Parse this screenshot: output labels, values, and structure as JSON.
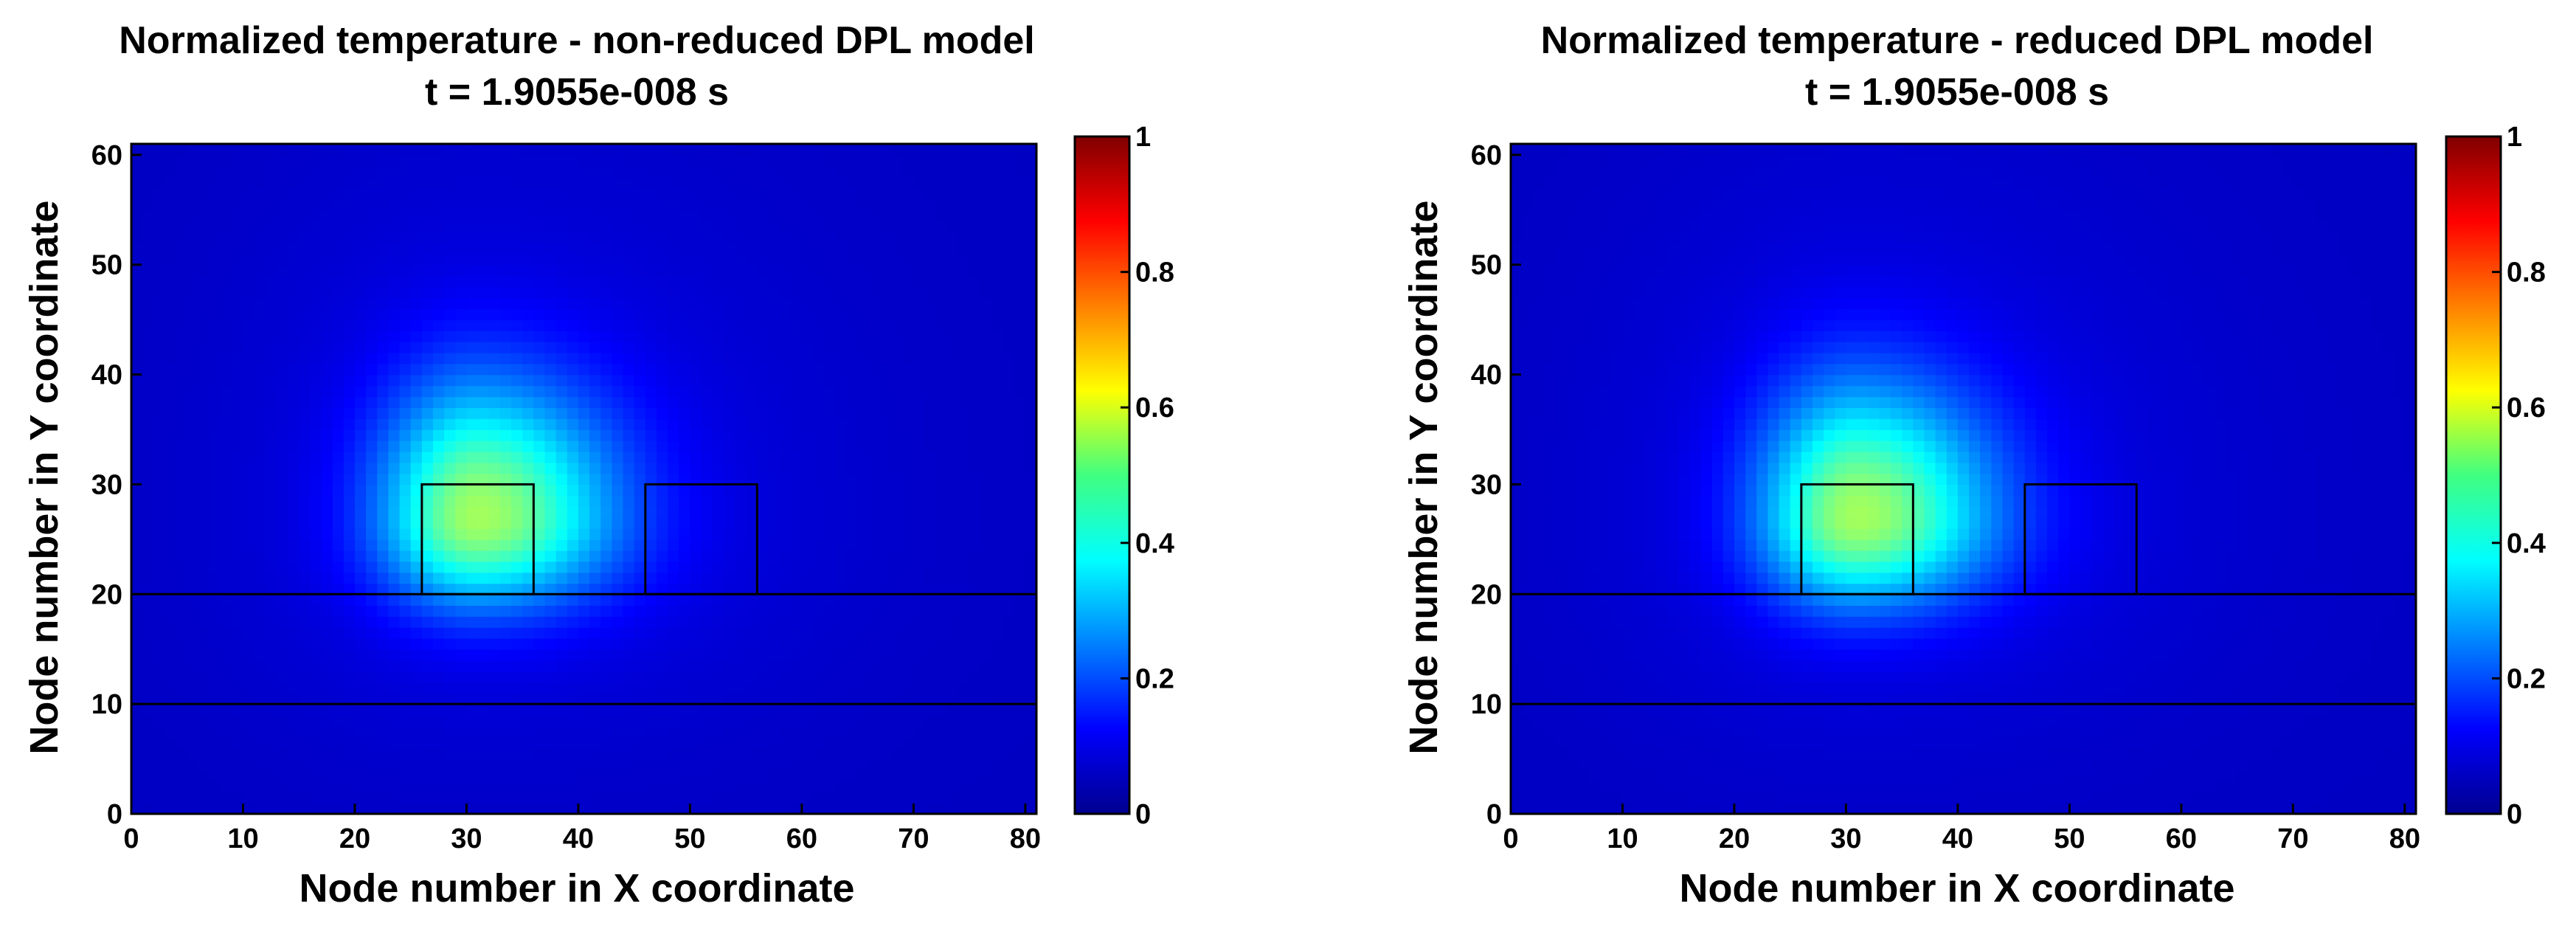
{
  "chart_data": [
    {
      "type": "heatmap",
      "title": "Normalized temperature - non-reduced DPL model",
      "subtitle": "t = 1.9055e-008 s",
      "xlabel": "Node number in X coordinate",
      "ylabel": "Node number in Y coordinate",
      "xlim": [
        0,
        81
      ],
      "ylim": [
        0,
        61
      ],
      "xticks": [
        0,
        10,
        20,
        30,
        40,
        50,
        60,
        70,
        80
      ],
      "yticks": [
        0,
        10,
        20,
        30,
        40,
        50,
        60
      ],
      "colorbar": {
        "range": [
          0,
          1
        ],
        "ticks": [
          0,
          0.2,
          0.4,
          0.6,
          0.8,
          1
        ],
        "tick_labels": [
          "0",
          "0.2",
          "0.4",
          "0.6",
          "0.8",
          "1"
        ],
        "colormap": "jet"
      },
      "hotspot": {
        "x": 31,
        "y": 27,
        "peak_value": 0.5
      },
      "overlays": [
        {
          "kind": "hline",
          "y": 10
        },
        {
          "kind": "hline",
          "y": 20
        },
        {
          "kind": "rect",
          "x": [
            26,
            36
          ],
          "y": [
            20,
            30
          ]
        },
        {
          "kind": "rect",
          "x": [
            46,
            56
          ],
          "y": [
            20,
            30
          ]
        }
      ]
    },
    {
      "type": "heatmap",
      "title": "Normalized temperature - reduced DPL model",
      "subtitle": "t = 1.9055e-008 s",
      "xlabel": "Node number in X coordinate",
      "ylabel": "Node number in Y coordinate",
      "xlim": [
        0,
        81
      ],
      "ylim": [
        0,
        61
      ],
      "xticks": [
        0,
        10,
        20,
        30,
        40,
        50,
        60,
        70,
        80
      ],
      "yticks": [
        0,
        10,
        20,
        30,
        40,
        50,
        60
      ],
      "colorbar": {
        "range": [
          0,
          1
        ],
        "ticks": [
          0,
          0.2,
          0.4,
          0.6,
          0.8,
          1
        ],
        "tick_labels": [
          "0",
          "0.2",
          "0.4",
          "0.6",
          "0.8",
          "1"
        ],
        "colormap": "jet"
      },
      "hotspot": {
        "x": 31,
        "y": 27,
        "peak_value": 0.5
      },
      "overlays": [
        {
          "kind": "hline",
          "y": 10
        },
        {
          "kind": "hline",
          "y": 20
        },
        {
          "kind": "rect",
          "x": [
            26,
            36
          ],
          "y": [
            20,
            30
          ]
        },
        {
          "kind": "rect",
          "x": [
            46,
            56
          ],
          "y": [
            20,
            30
          ]
        }
      ]
    }
  ]
}
